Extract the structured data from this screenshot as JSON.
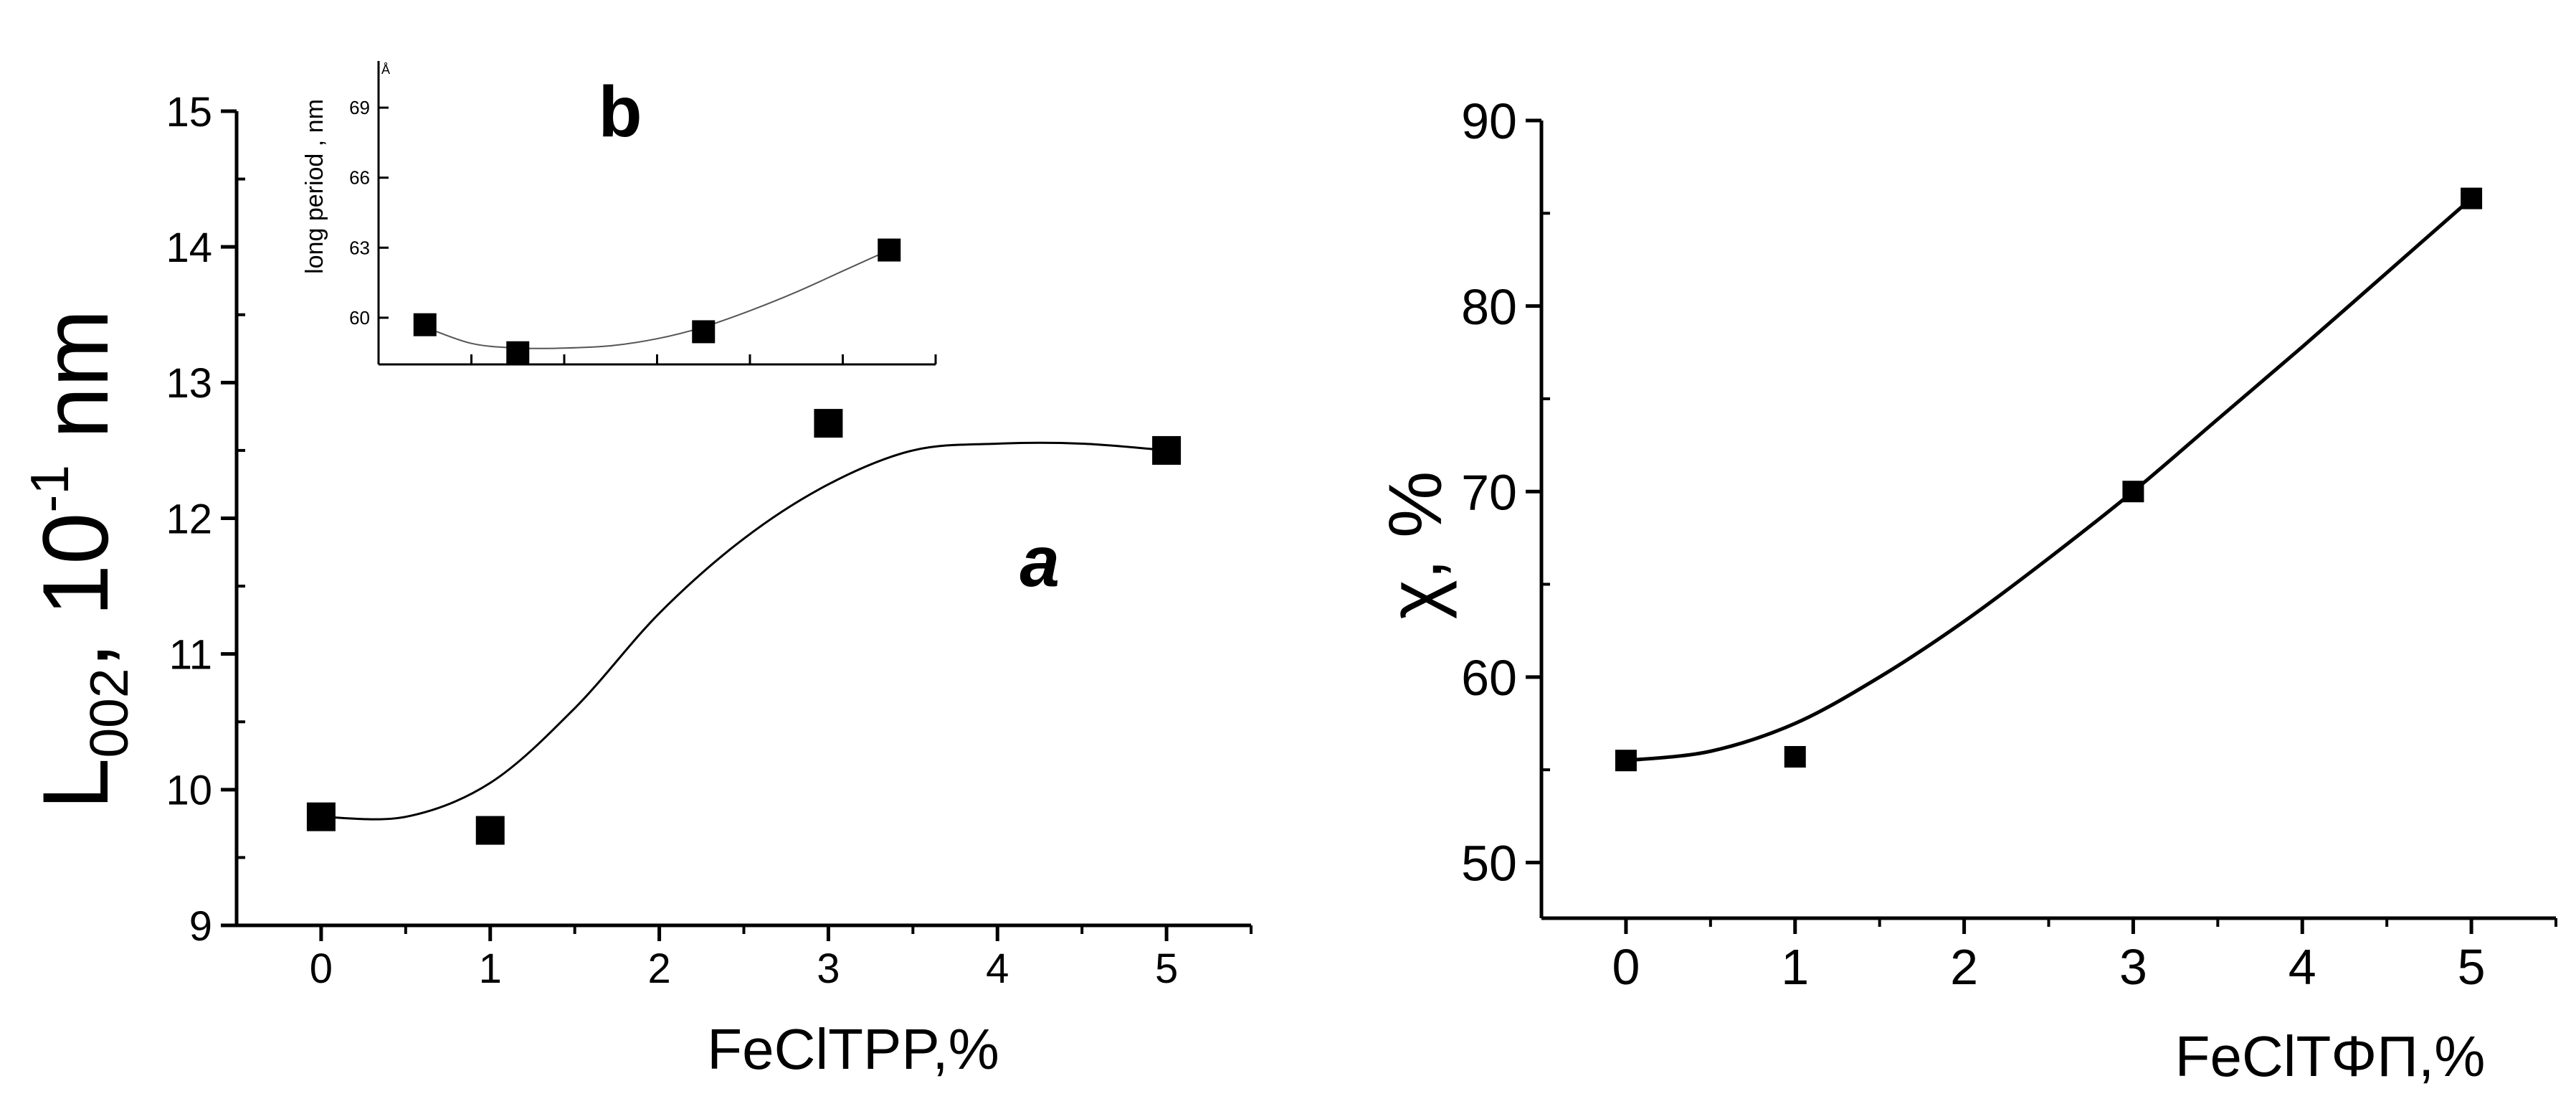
{
  "chart_data": [
    {
      "type": "scatter",
      "panel": "left",
      "xlabel": "FeClTPP,%",
      "ylabel": {
        "main": "L",
        "sub": "002",
        "sep": ",  10",
        "sup": "-1",
        "unit": " nm"
      },
      "xlim": [
        -0.5,
        5.5
      ],
      "ylim": [
        9,
        15
      ],
      "x_ticks": [
        "0",
        "1",
        "2",
        "3",
        "4",
        "5"
      ],
      "y_ticks": [
        "9",
        "10",
        "11",
        "12",
        "13",
        "14",
        "15"
      ],
      "series": [
        {
          "x": [
            0,
            1,
            3,
            5
          ],
          "y": [
            9.8,
            9.7,
            12.7,
            12.5
          ]
        }
      ],
      "fit_curve": {
        "x": [
          0,
          0.5,
          1,
          1.5,
          2,
          2.5,
          3,
          3.5,
          4,
          4.5,
          5
        ],
        "y": [
          9.8,
          9.8,
          10.05,
          10.6,
          11.3,
          11.85,
          12.25,
          12.5,
          12.55,
          12.55,
          12.5
        ]
      },
      "annotations": [
        {
          "text": "a",
          "x": 4.25,
          "y": 11.5
        }
      ],
      "inset": {
        "label": "b",
        "ylabel": "long period , nm",
        "corner_mark": "Å",
        "ylim": [
          58,
          71
        ],
        "xlim": [
          0,
          6
        ],
        "y_ticks": [
          "60",
          "63",
          "66",
          "69"
        ],
        "points": {
          "x": [
            0.5,
            1.5,
            3.5,
            5.5
          ],
          "y": [
            59.7,
            58.5,
            59.4,
            62.9
          ]
        },
        "fit_curve": {
          "x": [
            0.5,
            1,
            1.5,
            2,
            2.5,
            3,
            3.5,
            4,
            4.5,
            5,
            5.5
          ],
          "y": [
            59.6,
            58.9,
            58.7,
            58.7,
            58.8,
            59.1,
            59.6,
            60.3,
            61.1,
            62.0,
            62.9
          ]
        }
      }
    },
    {
      "type": "scatter",
      "panel": "right",
      "xlabel": "FeClTΦΠ,%",
      "ylabel": "χ, %",
      "xlim": [
        -0.5,
        5.5
      ],
      "ylim": [
        47,
        90
      ],
      "x_ticks": [
        "0",
        "1",
        "2",
        "3",
        "4",
        "5"
      ],
      "y_ticks": [
        "50",
        "60",
        "70",
        "80",
        "90"
      ],
      "series": [
        {
          "x": [
            0,
            1,
            3,
            5
          ],
          "y": [
            55.5,
            55.7,
            70.0,
            85.8
          ]
        }
      ],
      "fit_curve": {
        "x": [
          0,
          0.5,
          1,
          1.5,
          2,
          2.5,
          3,
          3.5,
          4,
          4.5,
          5
        ],
        "y": [
          55.5,
          56.0,
          57.5,
          60.0,
          63.0,
          66.4,
          70.0,
          73.9,
          77.8,
          81.8,
          85.8
        ]
      }
    }
  ]
}
